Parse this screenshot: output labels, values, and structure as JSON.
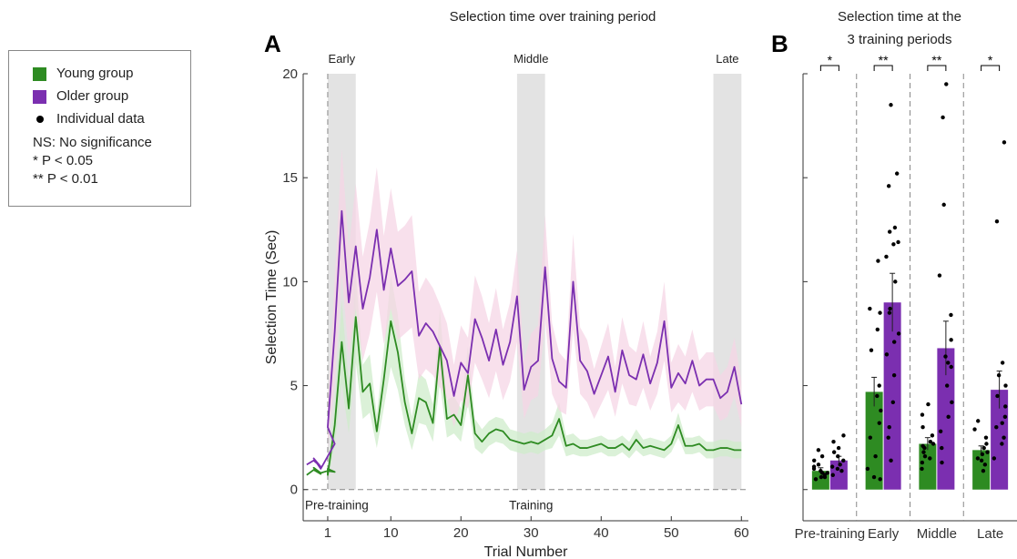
{
  "legend": {
    "items": [
      {
        "label": "Young group",
        "color": "#2e8b22",
        "kind": "square"
      },
      {
        "label": "Older group",
        "color": "#7b2fb0",
        "kind": "square"
      },
      {
        "label": "Individual data",
        "color": "#000000",
        "kind": "dot"
      }
    ],
    "notes": [
      "NS: No significance",
      "* P < 0.05",
      "** P < 0.01"
    ]
  },
  "panel_a": {
    "letter": "A",
    "title": "Selection time over training period"
  },
  "panel_b": {
    "letter": "B",
    "title_line1": "Selection time at the",
    "title_line2": "3 training periods"
  },
  "chart_data": [
    {
      "type": "line",
      "title": "Selection time over training period",
      "xlabel": "Trial Number",
      "ylabel": "Selection Time (Sec)",
      "xlim": [
        -2.5,
        61
      ],
      "ylim": [
        -1.5,
        20
      ],
      "yticks": [
        0,
        5,
        10,
        15,
        20
      ],
      "xticks": [
        1,
        10,
        20,
        30,
        40,
        50,
        60
      ],
      "pretraining_x": [
        -2,
        -1,
        0,
        -1,
        0,
        1,
        2,
        1
      ],
      "annotations": {
        "pre": "Pre-training",
        "training": "Training"
      },
      "periods": [
        {
          "name": "Early",
          "range": [
            1,
            5
          ]
        },
        {
          "name": "Middle",
          "range": [
            28,
            32
          ]
        },
        {
          "name": "Late",
          "range": [
            56,
            60
          ]
        }
      ],
      "series": [
        {
          "name": "Young group",
          "color": "#2e8b22",
          "band_color": "#cfeccb",
          "pre_values": [
            0.7,
            0.95,
            0.75,
            1.05,
            0.8,
            0.9,
            0.85,
            1.0
          ],
          "values": [
            0.7,
            3.1,
            7.1,
            3.9,
            8.3,
            4.7,
            5.1,
            2.8,
            5.3,
            8.1,
            6.6,
            4.2,
            2.7,
            4.4,
            4.2,
            3.2,
            6.9,
            3.4,
            3.6,
            3.1,
            5.5,
            2.7,
            2.3,
            2.7,
            2.9,
            2.8,
            2.4,
            2.3,
            2.2,
            2.3,
            2.2,
            2.4,
            2.6,
            3.4,
            2.1,
            2.2,
            2.0,
            2.0,
            2.1,
            2.2,
            2.0,
            2.0,
            2.2,
            1.9,
            2.4,
            2.0,
            2.1,
            2.0,
            1.9,
            2.2,
            3.1,
            2.1,
            2.1,
            2.2,
            1.9,
            1.9,
            2.0,
            2.0,
            1.9,
            1.9
          ],
          "err": [
            0.3,
            1.0,
            2.0,
            1.2,
            2.2,
            1.3,
            1.4,
            0.8,
            1.4,
            2.2,
            1.8,
            1.1,
            0.8,
            1.2,
            1.1,
            0.9,
            1.8,
            0.9,
            0.9,
            0.8,
            1.4,
            0.7,
            0.6,
            0.6,
            0.6,
            0.6,
            0.5,
            0.5,
            0.5,
            0.5,
            0.5,
            0.5,
            0.6,
            0.8,
            0.5,
            0.5,
            0.4,
            0.4,
            0.4,
            0.4,
            0.4,
            0.4,
            0.4,
            0.4,
            0.5,
            0.4,
            0.4,
            0.4,
            0.4,
            0.4,
            0.6,
            0.4,
            0.4,
            0.4,
            0.4,
            0.4,
            0.4,
            0.4,
            0.4,
            0.4
          ]
        },
        {
          "name": "Older group",
          "color": "#7b2fb0",
          "band_color": "#f5d6e6",
          "pre_values": [
            1.2,
            1.4,
            1.1,
            1.5,
            1.0,
            1.6,
            2.2,
            3.0
          ],
          "values": [
            3.0,
            7.6,
            13.4,
            9.0,
            11.7,
            8.7,
            10.2,
            12.5,
            9.6,
            11.6,
            9.8,
            10.1,
            10.5,
            7.4,
            8.0,
            7.6,
            6.9,
            6.2,
            4.5,
            6.1,
            5.6,
            8.2,
            7.3,
            6.2,
            7.7,
            6.0,
            7.1,
            9.3,
            4.8,
            5.9,
            6.2,
            10.7,
            6.3,
            5.2,
            4.9,
            10.0,
            6.2,
            5.7,
            4.6,
            5.5,
            6.4,
            4.7,
            6.7,
            5.5,
            5.3,
            6.5,
            5.1,
            6.1,
            8.1,
            4.9,
            5.6,
            5.1,
            6.2,
            5.0,
            5.3,
            5.3,
            4.4,
            4.7,
            5.9,
            4.1
          ],
          "err": [
            1.0,
            2.5,
            3.0,
            2.6,
            3.0,
            2.5,
            2.7,
            3.0,
            2.6,
            2.9,
            2.6,
            2.6,
            2.7,
            2.1,
            2.2,
            2.1,
            2.0,
            1.8,
            1.5,
            1.8,
            1.7,
            2.1,
            2.0,
            1.8,
            2.0,
            1.7,
            1.9,
            2.2,
            1.4,
            1.6,
            1.7,
            2.5,
            1.7,
            1.4,
            1.3,
            2.3,
            1.6,
            1.5,
            1.2,
            1.4,
            1.6,
            1.2,
            1.6,
            1.4,
            1.3,
            1.6,
            1.3,
            1.5,
            1.9,
            1.2,
            1.4,
            1.3,
            1.5,
            1.2,
            1.3,
            1.3,
            1.1,
            1.2,
            1.4,
            1.1
          ]
        }
      ]
    },
    {
      "type": "bar",
      "title": "Selection time at the 3 training periods",
      "categories": [
        "Pre-training",
        "Early",
        "Middle",
        "Late"
      ],
      "ylim": [
        -1.5,
        20
      ],
      "significance": [
        "*",
        "**",
        "**",
        "*"
      ],
      "series": [
        {
          "name": "Young group",
          "color": "#2e8b22",
          "values": [
            0.9,
            4.7,
            2.2,
            1.9
          ],
          "err": [
            0.15,
            0.7,
            0.3,
            0.2
          ],
          "individual": [
            [
              0.5,
              0.6,
              0.7,
              0.8,
              0.9,
              1.0,
              1.1,
              1.2,
              1.4,
              1.6,
              1.9,
              0.6,
              0.8
            ],
            [
              0.5,
              0.6,
              1.0,
              1.6,
              2.5,
              3.2,
              3.8,
              4.5,
              5.0,
              6.7,
              7.7,
              8.7,
              11.0,
              8.5
            ],
            [
              1.0,
              1.3,
              1.6,
              1.8,
              2.0,
              2.1,
              2.3,
              2.6,
              3.0,
              3.6,
              4.1,
              1.5,
              2.2
            ],
            [
              0.9,
              1.2,
              1.5,
              1.8,
              2.0,
              2.2,
              2.5,
              2.9,
              3.3,
              1.4,
              1.7
            ]
          ]
        },
        {
          "name": "Older group",
          "color": "#7b2fb0",
          "values": [
            1.4,
            9.0,
            6.8,
            4.8
          ],
          "err": [
            0.2,
            1.4,
            1.3,
            0.9
          ],
          "individual": [
            [
              0.7,
              0.9,
              1.0,
              1.2,
              1.4,
              1.6,
              1.8,
              2.0,
              2.3,
              2.6,
              1.1
            ],
            [
              1.4,
              2.5,
              3.0,
              4.2,
              5.5,
              6.5,
              7.5,
              8.5,
              8.7,
              10.0,
              11.2,
              11.8,
              11.9,
              12.6,
              14.6,
              15.2,
              18.5,
              12.4,
              7.1
            ],
            [
              1.3,
              2.0,
              3.5,
              4.2,
              5.0,
              5.9,
              6.4,
              7.2,
              8.4,
              10.3,
              13.7,
              17.9,
              19.5,
              2.8,
              6.1
            ],
            [
              1.5,
              2.2,
              2.5,
              3.0,
              3.5,
              4.0,
              4.5,
              5.0,
              5.5,
              6.1,
              12.9,
              16.7,
              3.2
            ]
          ]
        }
      ]
    }
  ]
}
